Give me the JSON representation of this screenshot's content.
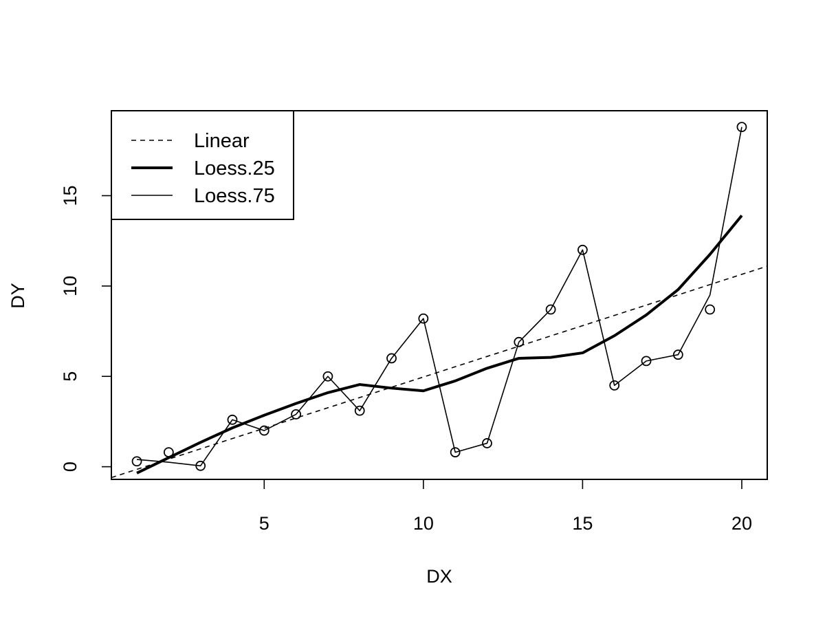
{
  "chart_data": {
    "type": "line",
    "xlabel": "DX",
    "ylabel": "DY",
    "xlim": [
      0.2,
      20.8
    ],
    "ylim": [
      -0.7,
      19.7
    ],
    "x_ticks": [
      5,
      10,
      15,
      20
    ],
    "y_ticks": [
      0,
      5,
      10,
      15
    ],
    "x_tick_labels": [
      "5",
      "10",
      "15",
      "20"
    ],
    "y_tick_labels": [
      "0",
      "5",
      "10",
      "15"
    ],
    "grid": false,
    "legend_position": "top-left",
    "legend": [
      {
        "label": "Linear",
        "style": "dashed"
      },
      {
        "label": "Loess.25",
        "style": "thick"
      },
      {
        "label": "Loess.75",
        "style": "thin"
      }
    ],
    "points": {
      "x": [
        1,
        2,
        3,
        4,
        5,
        6,
        7,
        8,
        9,
        10,
        11,
        12,
        13,
        14,
        15,
        16,
        17,
        18,
        19,
        20
      ],
      "y": [
        0.3,
        0.8,
        0.05,
        2.6,
        2.0,
        2.9,
        5.0,
        3.1,
        6.0,
        8.2,
        0.8,
        1.3,
        6.9,
        8.7,
        12.0,
        4.5,
        5.85,
        6.2,
        8.7,
        18.8
      ]
    },
    "series": [
      {
        "name": "Linear",
        "style": "dashed",
        "x": [
          0.2,
          20.8
        ],
        "y": [
          -0.6,
          11.1
        ]
      },
      {
        "name": "Loess.25",
        "style": "thick",
        "x": [
          1,
          2,
          3,
          4,
          5,
          6,
          7,
          8,
          9,
          10,
          11,
          12,
          13,
          14,
          15,
          16,
          17,
          18,
          19,
          20
        ],
        "y": [
          -0.35,
          0.5,
          1.35,
          2.15,
          2.85,
          3.5,
          4.1,
          4.55,
          4.35,
          4.2,
          4.75,
          5.45,
          6.0,
          6.05,
          6.3,
          7.25,
          8.4,
          9.8,
          11.75,
          13.9
        ]
      },
      {
        "name": "Loess.75",
        "style": "thin",
        "x": [
          1,
          2,
          3,
          4,
          5,
          6,
          7,
          8,
          9,
          10,
          11,
          12,
          13,
          14,
          15,
          16,
          17,
          18,
          19,
          20
        ],
        "y": [
          0.4,
          0.25,
          0.05,
          2.6,
          2.0,
          2.9,
          5.0,
          3.1,
          6.0,
          8.2,
          0.8,
          1.3,
          6.9,
          8.7,
          12.0,
          4.5,
          5.85,
          6.2,
          9.5,
          18.8
        ]
      }
    ]
  }
}
